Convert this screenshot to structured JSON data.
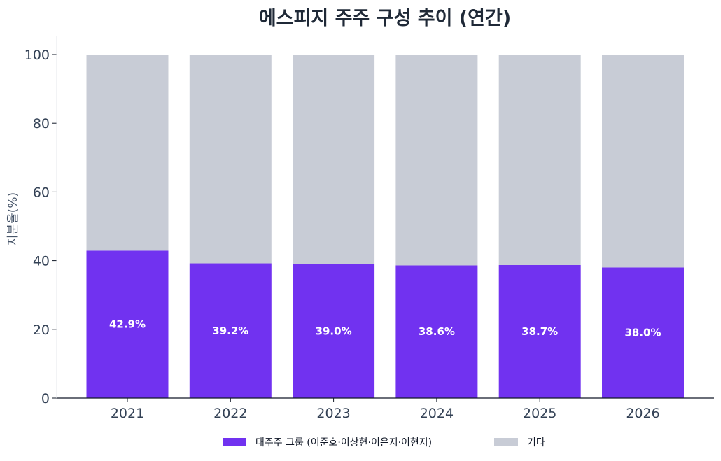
{
  "chart_data": {
    "type": "bar",
    "stacked": true,
    "title": "에스피지 주주 구성 추이 (연간)",
    "ylabel": "지분율(%)",
    "xlabel": "",
    "categories": [
      "2021",
      "2022",
      "2023",
      "2024",
      "2025",
      "2026"
    ],
    "ylim": [
      0,
      100
    ],
    "yticks": [
      0,
      20,
      40,
      60,
      80,
      100
    ],
    "series": [
      {
        "name": "대주주 그룹 (이준호·이상현·이은지·이현지)",
        "color": "#7132f0",
        "values": [
          42.9,
          39.2,
          39.0,
          38.6,
          38.7,
          38.0
        ],
        "labels": [
          "42.9%",
          "39.2%",
          "39.0%",
          "38.6%",
          "38.7%",
          "38.0%"
        ]
      },
      {
        "name": "기타",
        "color": "#c8ccd6",
        "values": [
          57.1,
          60.8,
          61.0,
          61.4,
          61.3,
          62.0
        ]
      }
    ],
    "grid": false,
    "legend_position": "bottom"
  }
}
